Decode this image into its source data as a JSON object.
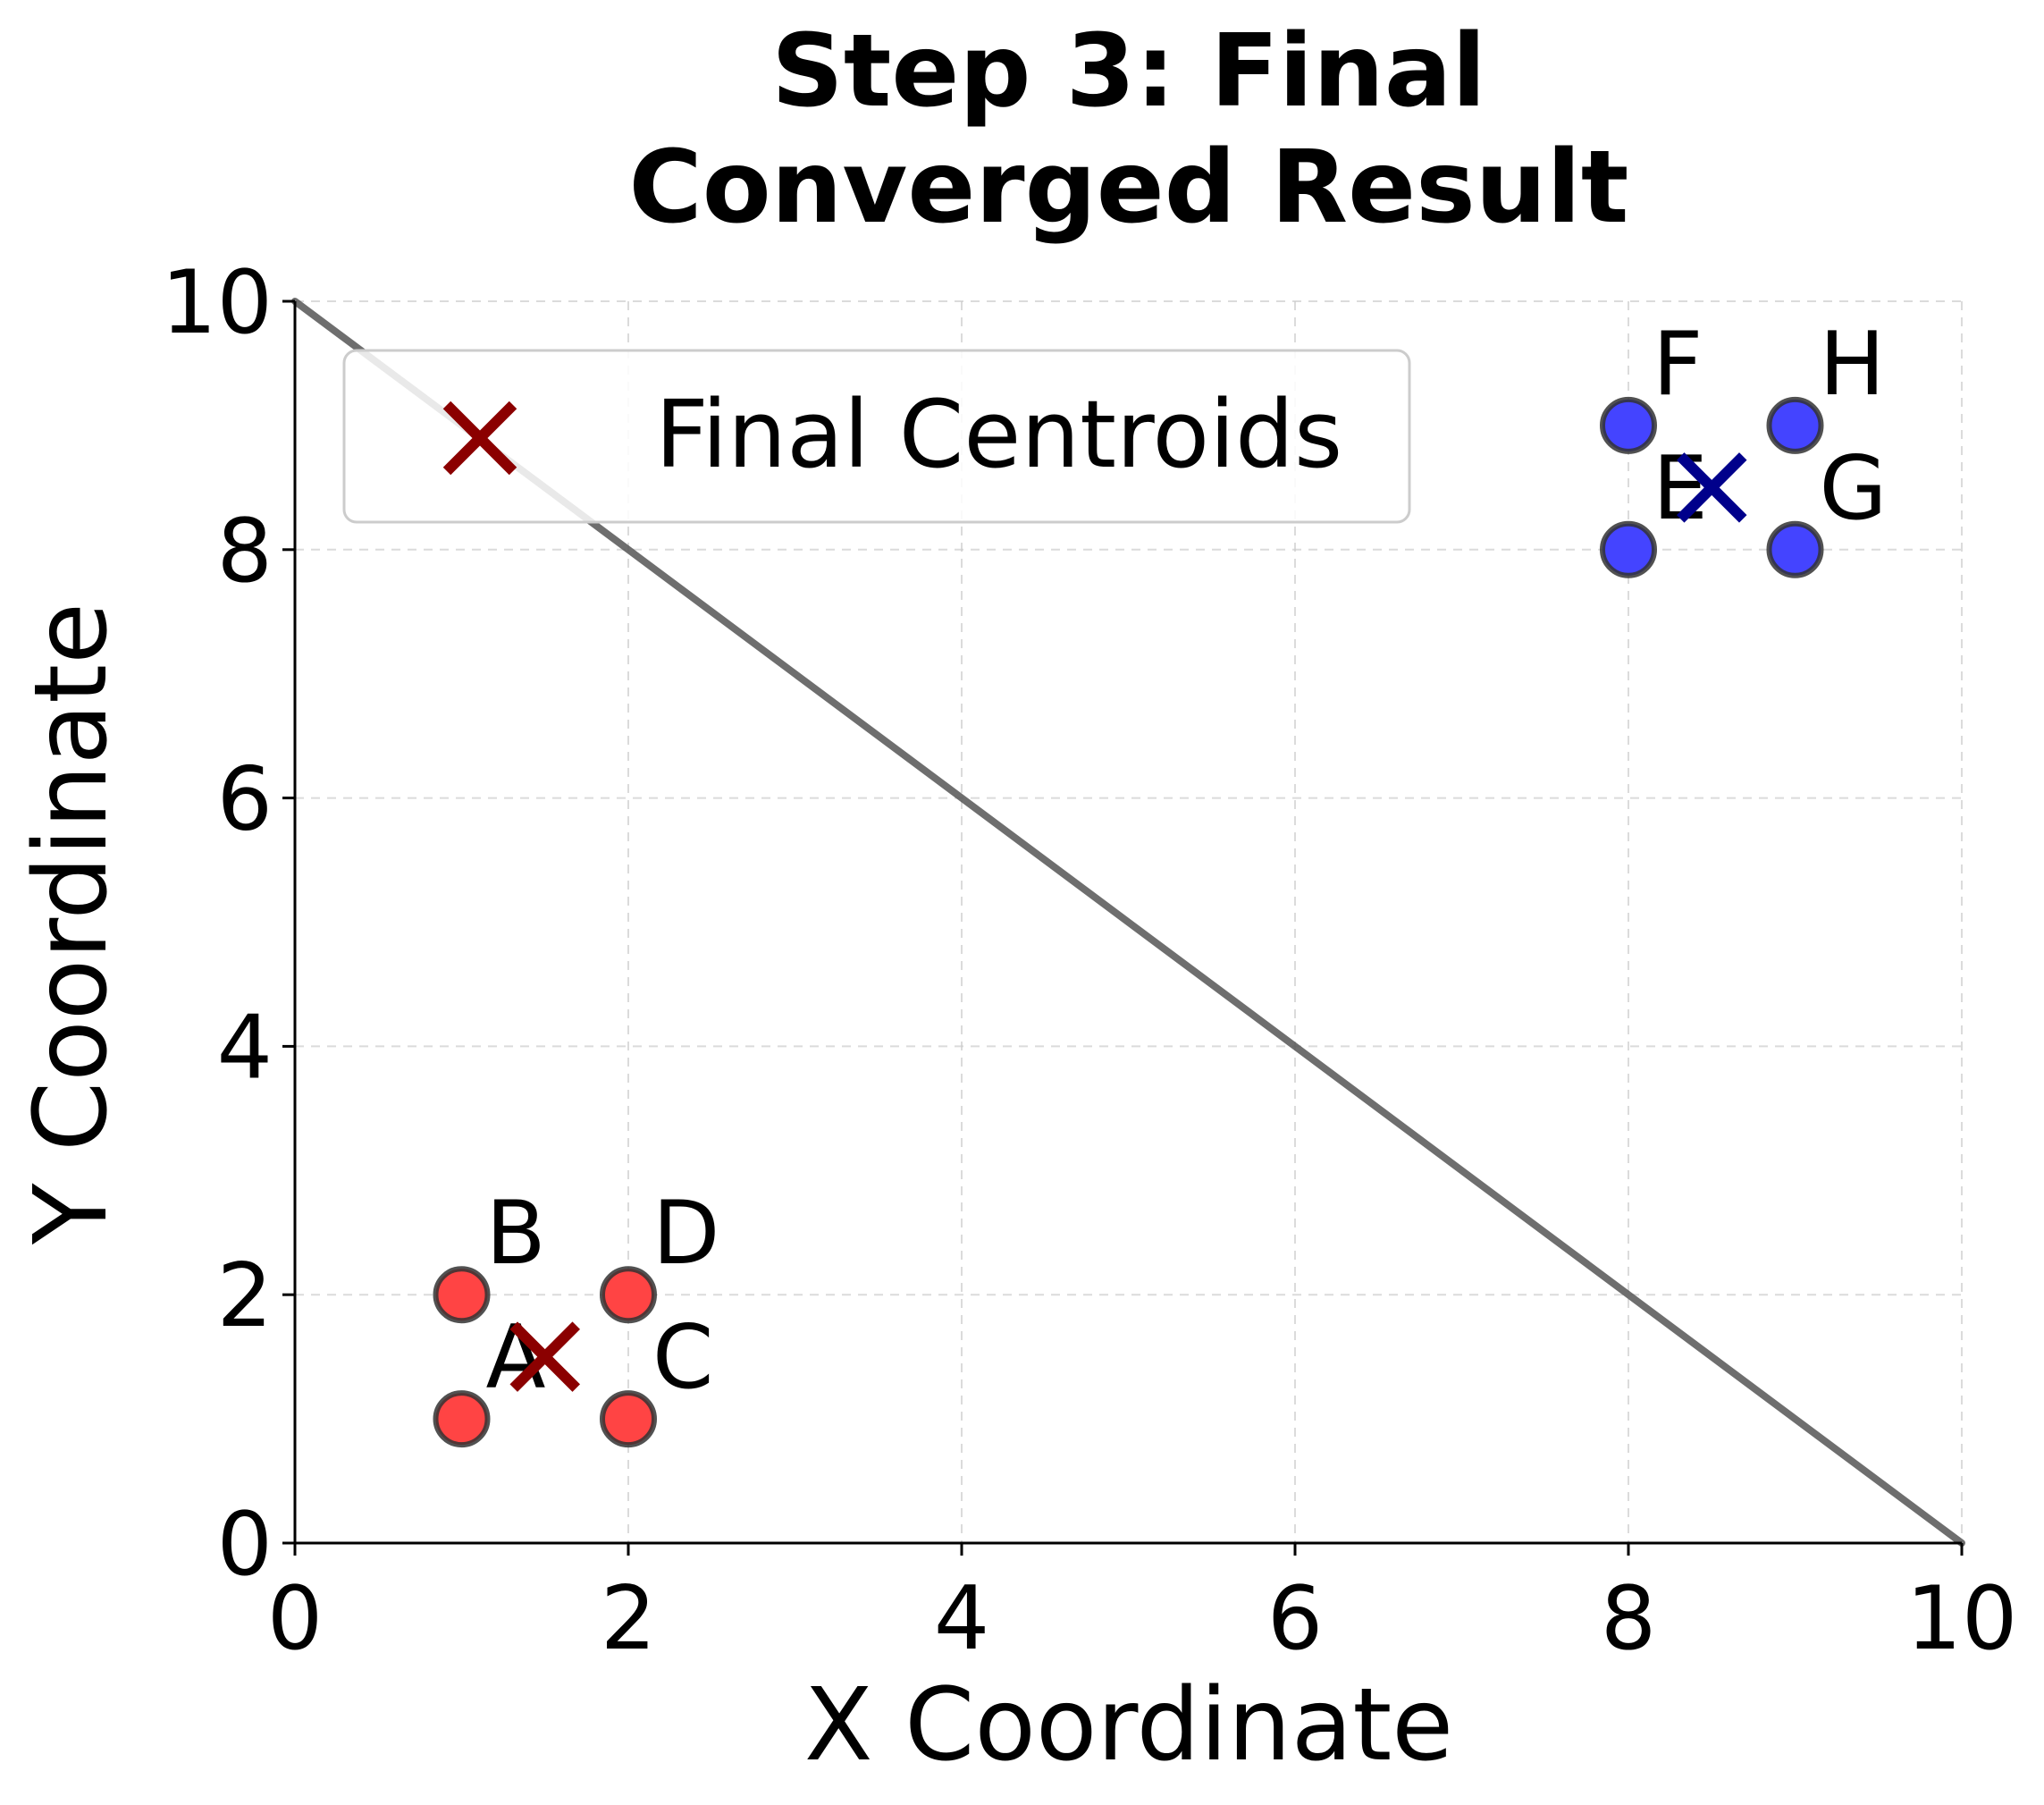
{
  "chart_data": {
    "type": "scatter",
    "title_lines": [
      "Step 3: Final",
      "Converged Result"
    ],
    "xlabel": "X Coordinate",
    "ylabel": "Y Coordinate",
    "xlim": [
      0,
      10
    ],
    "ylim": [
      0,
      10
    ],
    "xticks": [
      0,
      2,
      4,
      6,
      8,
      10
    ],
    "yticks": [
      0,
      2,
      4,
      6,
      8,
      10
    ],
    "grid": true,
    "legend": {
      "placement": "top-left",
      "entries": [
        {
          "label": "Final Centroids",
          "marker": "x",
          "color": "#8b0000"
        }
      ]
    },
    "points": [
      {
        "label": "A",
        "x": 1,
        "y": 1,
        "color": "#ff4444"
      },
      {
        "label": "B",
        "x": 1,
        "y": 2,
        "color": "#ff4444"
      },
      {
        "label": "C",
        "x": 2,
        "y": 1,
        "color": "#ff4444"
      },
      {
        "label": "D",
        "x": 2,
        "y": 2,
        "color": "#ff4444"
      },
      {
        "label": "E",
        "x": 8,
        "y": 8,
        "color": "#4444ff"
      },
      {
        "label": "F",
        "x": 8,
        "y": 9,
        "color": "#4444ff"
      },
      {
        "label": "G",
        "x": 9,
        "y": 8,
        "color": "#4444ff"
      },
      {
        "label": "H",
        "x": 9,
        "y": 9,
        "color": "#4444ff"
      }
    ],
    "centroids": [
      {
        "x": 1.5,
        "y": 1.5,
        "color": "#8b0000"
      },
      {
        "x": 8.5,
        "y": 8.5,
        "color": "#00008b"
      }
    ],
    "decision_boundary": {
      "from": [
        0,
        10
      ],
      "to": [
        10,
        0
      ],
      "color": "#555555"
    }
  }
}
